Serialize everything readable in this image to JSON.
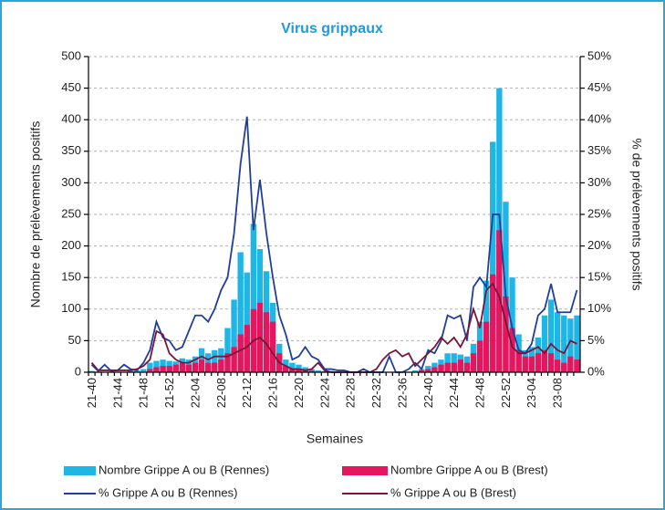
{
  "chart_data": {
    "type": "bar-line",
    "title": "Virus grippaux",
    "x_label": "Semaines",
    "y_label": "Nombre de prélèvements positifs",
    "y2_label": "% de prélèvements positifs",
    "categories": [
      "21-40",
      null,
      null,
      null,
      "21-44",
      null,
      null,
      null,
      "21-48",
      null,
      null,
      null,
      "21-52",
      null,
      null,
      null,
      "22-04",
      null,
      null,
      null,
      "22-08",
      null,
      null,
      null,
      "22-12",
      null,
      null,
      null,
      "22-16",
      null,
      null,
      null,
      "22-20",
      null,
      null,
      null,
      "22-24",
      null,
      null,
      null,
      "22-28",
      null,
      null,
      null,
      "22-32",
      null,
      null,
      null,
      "22-36",
      null,
      null,
      null,
      "22-40",
      null,
      null,
      null,
      "22-44",
      null,
      null,
      null,
      "22-48",
      null,
      null,
      null,
      "22-52",
      null,
      null,
      null,
      "23-04",
      null,
      null,
      null,
      "23-08",
      null,
      null,
      null
    ],
    "ylim": [
      0,
      500
    ],
    "yticks": [
      0,
      50,
      100,
      150,
      200,
      250,
      300,
      350,
      400,
      450,
      500
    ],
    "y2lim": [
      0,
      50
    ],
    "y2ticks": [
      {
        "value": 0,
        "label": "0%"
      },
      {
        "value": 5,
        "label": "5%"
      },
      {
        "value": 10,
        "label": "10%"
      },
      {
        "value": 15,
        "label": "15%"
      },
      {
        "value": 20,
        "label": "20%"
      },
      {
        "value": 25,
        "label": "25%"
      },
      {
        "value": 30,
        "label": "30%"
      },
      {
        "value": 35,
        "label": "35%"
      },
      {
        "value": 40,
        "label": "40%"
      },
      {
        "value": 45,
        "label": "45%"
      },
      {
        "value": 50,
        "label": "50%"
      }
    ],
    "grid": true,
    "series": [
      {
        "name": "Nombre Grippe A ou B (Rennes)",
        "type": "bar",
        "color": "#1fb6e6",
        "values": [
          2,
          1,
          0,
          1,
          1,
          0,
          2,
          3,
          5,
          15,
          18,
          20,
          18,
          17,
          22,
          20,
          25,
          38,
          30,
          35,
          38,
          70,
          115,
          190,
          158,
          235,
          195,
          160,
          110,
          45,
          20,
          15,
          12,
          8,
          5,
          3,
          2,
          2,
          0,
          0,
          0,
          0,
          0,
          0,
          0,
          0,
          0,
          0,
          0,
          0,
          3,
          5,
          10,
          15,
          20,
          30,
          30,
          28,
          25,
          45,
          80,
          145,
          365,
          450,
          270,
          150,
          60,
          35,
          40,
          55,
          90,
          115,
          95,
          90,
          85,
          90
        ]
      },
      {
        "name": "Nombre Grippe A ou B (Brest)",
        "type": "bar",
        "color": "#e3165e",
        "values": [
          0,
          0,
          0,
          0,
          0,
          0,
          0,
          0,
          0,
          5,
          8,
          10,
          10,
          12,
          15,
          12,
          15,
          20,
          15,
          15,
          20,
          30,
          40,
          60,
          75,
          100,
          110,
          95,
          80,
          30,
          10,
          5,
          5,
          3,
          2,
          1,
          0,
          0,
          0,
          0,
          0,
          0,
          0,
          0,
          0,
          0,
          0,
          0,
          0,
          0,
          1,
          3,
          5,
          8,
          12,
          15,
          15,
          20,
          15,
          30,
          50,
          80,
          155,
          225,
          120,
          70,
          35,
          25,
          25,
          30,
          35,
          30,
          20,
          15,
          25,
          20
        ]
      },
      {
        "name": "% Grippe A ou B (Rennes)",
        "type": "line",
        "axis": "y2",
        "color": "#1f3f9a",
        "values": [
          1.2,
          0.2,
          1.2,
          0.2,
          0.3,
          1.2,
          0.5,
          0.3,
          1.5,
          3.5,
          8,
          5.5,
          5,
          3.5,
          4,
          6.5,
          9,
          9,
          8,
          10,
          13,
          15,
          22,
          33,
          40.5,
          22.5,
          30.5,
          22,
          15,
          9,
          6,
          2,
          2.5,
          4,
          2.5,
          2,
          0.5,
          0.5,
          0.3,
          0.3,
          0,
          0,
          0.5,
          0,
          0,
          0,
          2.5,
          0,
          0,
          0.5,
          1.5,
          0.5,
          3.5,
          3,
          5,
          9,
          8.5,
          9,
          5,
          13.5,
          15,
          13.5,
          25,
          25,
          12,
          7,
          3.5,
          3,
          4.5,
          9,
          10,
          14,
          9.5,
          9.5,
          9.5,
          13
        ]
      },
      {
        "name": "% Grippe A ou B (Brest)",
        "type": "line",
        "axis": "y2",
        "color": "#7a1538",
        "values": [
          1.5,
          0.3,
          0.3,
          0.3,
          0.3,
          0.3,
          0.3,
          0.5,
          1,
          2,
          6.5,
          6,
          3,
          2,
          1.5,
          1.5,
          2,
          2.5,
          2,
          2.5,
          2.5,
          2.5,
          3,
          3.5,
          4,
          5,
          5.5,
          4.5,
          3,
          1.5,
          1,
          0.5,
          0.5,
          0.3,
          0.5,
          1.5,
          0.3,
          0,
          0,
          0,
          0,
          0,
          0,
          0,
          0.5,
          2,
          3,
          3.5,
          2.5,
          3,
          1,
          2,
          3,
          4,
          5.5,
          4.5,
          5.5,
          4,
          6,
          10,
          7,
          13,
          14,
          12,
          8,
          4,
          3,
          3,
          3.5,
          4,
          3,
          4.5,
          3.5,
          3,
          5,
          4.5
        ]
      }
    ]
  }
}
